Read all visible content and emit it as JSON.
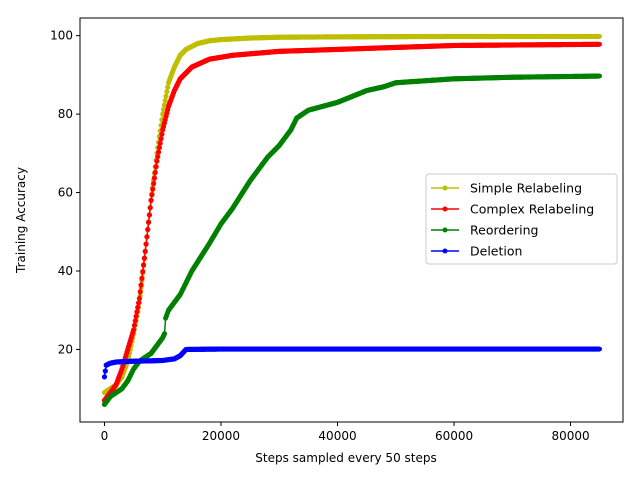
{
  "chart_data": {
    "type": "line",
    "title": "",
    "xlabel": "Steps sampled every 50 steps",
    "ylabel": "Training Accuracy",
    "xlim": [
      -4200,
      89000
    ],
    "ylim": [
      1.5,
      104.5
    ],
    "xticks": [
      0,
      20000,
      40000,
      60000,
      80000
    ],
    "yticks": [
      20,
      40,
      60,
      80,
      100
    ],
    "xtick_labels": [
      "0",
      "20000",
      "40000",
      "60000",
      "80000"
    ],
    "ytick_labels": [
      "20",
      "40",
      "60",
      "80",
      "100"
    ],
    "grid": false,
    "legend_position": "center-right",
    "series": [
      {
        "name": "Simple Relabeling",
        "color": "#bfbf00",
        "points": [
          [
            0,
            9
          ],
          [
            1000,
            10
          ],
          [
            2000,
            11
          ],
          [
            3000,
            13
          ],
          [
            4000,
            17
          ],
          [
            5000,
            24
          ],
          [
            6000,
            32
          ],
          [
            7000,
            45
          ],
          [
            8000,
            58
          ],
          [
            9000,
            70
          ],
          [
            10000,
            80
          ],
          [
            11000,
            88
          ],
          [
            12000,
            92
          ],
          [
            13000,
            95
          ],
          [
            14000,
            96.5
          ],
          [
            16000,
            98
          ],
          [
            18000,
            98.7
          ],
          [
            20000,
            99
          ],
          [
            25000,
            99.4
          ],
          [
            30000,
            99.6
          ],
          [
            40000,
            99.7
          ],
          [
            60000,
            99.8
          ],
          [
            85000,
            99.8
          ]
        ]
      },
      {
        "name": "Complex Relabeling",
        "color": "#ff0000",
        "points": [
          [
            0,
            7
          ],
          [
            1000,
            9
          ],
          [
            2000,
            11
          ],
          [
            3000,
            15
          ],
          [
            4000,
            20
          ],
          [
            5000,
            25
          ],
          [
            6000,
            33
          ],
          [
            7000,
            45
          ],
          [
            8000,
            58
          ],
          [
            9000,
            68
          ],
          [
            10000,
            76
          ],
          [
            11000,
            82
          ],
          [
            12000,
            86
          ],
          [
            13000,
            89
          ],
          [
            15000,
            92
          ],
          [
            18000,
            94
          ],
          [
            22000,
            95
          ],
          [
            30000,
            96
          ],
          [
            40000,
            96.5
          ],
          [
            50000,
            97
          ],
          [
            60000,
            97.5
          ],
          [
            85000,
            97.8
          ]
        ]
      },
      {
        "name": "Reordering",
        "color": "#008000",
        "points": [
          [
            0,
            6
          ],
          [
            1000,
            8
          ],
          [
            2000,
            9
          ],
          [
            3000,
            10
          ],
          [
            4000,
            12
          ],
          [
            5000,
            15
          ],
          [
            6000,
            17
          ],
          [
            7000,
            18
          ],
          [
            8000,
            19
          ],
          [
            9000,
            21
          ],
          [
            10000,
            23
          ],
          [
            10300,
            24
          ],
          [
            10500,
            28
          ],
          [
            11000,
            30
          ],
          [
            13000,
            34
          ],
          [
            15000,
            40
          ],
          [
            18000,
            47
          ],
          [
            20000,
            52
          ],
          [
            22000,
            56
          ],
          [
            25000,
            63
          ],
          [
            28000,
            69
          ],
          [
            30000,
            72
          ],
          [
            32000,
            76
          ],
          [
            33000,
            79
          ],
          [
            35000,
            81
          ],
          [
            40000,
            83
          ],
          [
            45000,
            86
          ],
          [
            48000,
            87
          ],
          [
            50000,
            88
          ],
          [
            55000,
            88.5
          ],
          [
            60000,
            89
          ],
          [
            70000,
            89.4
          ],
          [
            85000,
            89.7
          ]
        ]
      },
      {
        "name": "Deletion",
        "color": "#0000ff",
        "points": [
          [
            0,
            13
          ],
          [
            300,
            16
          ],
          [
            1000,
            16.5
          ],
          [
            2000,
            16.8
          ],
          [
            5000,
            17
          ],
          [
            8000,
            17.1
          ],
          [
            10000,
            17.2
          ],
          [
            12000,
            17.6
          ],
          [
            13000,
            18.4
          ],
          [
            14000,
            20
          ],
          [
            20000,
            20.1
          ],
          [
            85000,
            20.1
          ]
        ]
      }
    ]
  }
}
